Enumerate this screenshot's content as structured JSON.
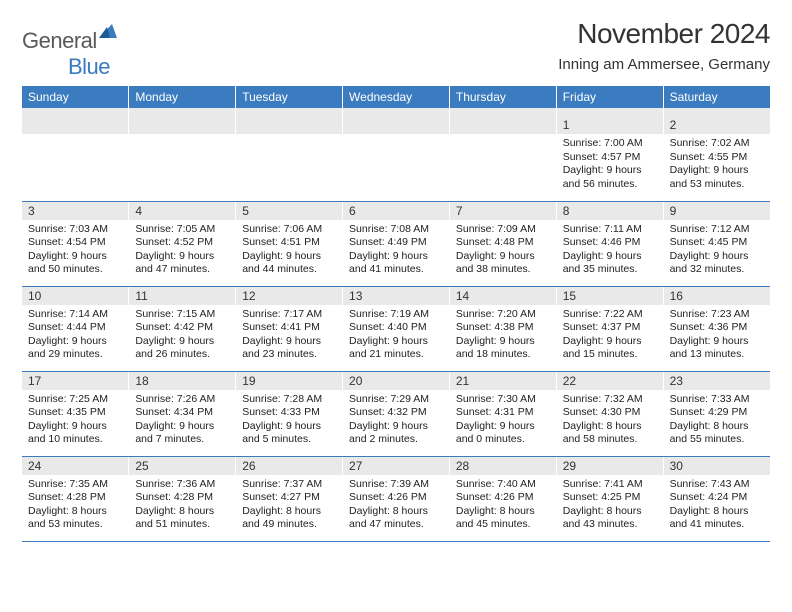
{
  "branding": {
    "logo_part1": "General",
    "logo_part2": "Blue",
    "logo_color_primary": "#3b7bbf",
    "logo_color_text": "#5a5a5a"
  },
  "header": {
    "month_title": "November 2024",
    "location": "Inning am Ammersee, Germany"
  },
  "style": {
    "header_bg": "#3b7bbf",
    "header_text": "#ffffff",
    "daynum_bg": "#e9e9e9",
    "cell_border": "#3b7bbf",
    "body_text": "#222222",
    "title_fontsize": 28,
    "location_fontsize": 15,
    "th_fontsize": 12,
    "cell_fontsize": 10.5
  },
  "weekdays": [
    "Sunday",
    "Monday",
    "Tuesday",
    "Wednesday",
    "Thursday",
    "Friday",
    "Saturday"
  ],
  "weeks": [
    [
      {
        "day": "",
        "sunrise": "",
        "sunset": "",
        "daylight": ""
      },
      {
        "day": "",
        "sunrise": "",
        "sunset": "",
        "daylight": ""
      },
      {
        "day": "",
        "sunrise": "",
        "sunset": "",
        "daylight": ""
      },
      {
        "day": "",
        "sunrise": "",
        "sunset": "",
        "daylight": ""
      },
      {
        "day": "",
        "sunrise": "",
        "sunset": "",
        "daylight": ""
      },
      {
        "day": "1",
        "sunrise": "Sunrise: 7:00 AM",
        "sunset": "Sunset: 4:57 PM",
        "daylight": "Daylight: 9 hours and 56 minutes."
      },
      {
        "day": "2",
        "sunrise": "Sunrise: 7:02 AM",
        "sunset": "Sunset: 4:55 PM",
        "daylight": "Daylight: 9 hours and 53 minutes."
      }
    ],
    [
      {
        "day": "3",
        "sunrise": "Sunrise: 7:03 AM",
        "sunset": "Sunset: 4:54 PM",
        "daylight": "Daylight: 9 hours and 50 minutes."
      },
      {
        "day": "4",
        "sunrise": "Sunrise: 7:05 AM",
        "sunset": "Sunset: 4:52 PM",
        "daylight": "Daylight: 9 hours and 47 minutes."
      },
      {
        "day": "5",
        "sunrise": "Sunrise: 7:06 AM",
        "sunset": "Sunset: 4:51 PM",
        "daylight": "Daylight: 9 hours and 44 minutes."
      },
      {
        "day": "6",
        "sunrise": "Sunrise: 7:08 AM",
        "sunset": "Sunset: 4:49 PM",
        "daylight": "Daylight: 9 hours and 41 minutes."
      },
      {
        "day": "7",
        "sunrise": "Sunrise: 7:09 AM",
        "sunset": "Sunset: 4:48 PM",
        "daylight": "Daylight: 9 hours and 38 minutes."
      },
      {
        "day": "8",
        "sunrise": "Sunrise: 7:11 AM",
        "sunset": "Sunset: 4:46 PM",
        "daylight": "Daylight: 9 hours and 35 minutes."
      },
      {
        "day": "9",
        "sunrise": "Sunrise: 7:12 AM",
        "sunset": "Sunset: 4:45 PM",
        "daylight": "Daylight: 9 hours and 32 minutes."
      }
    ],
    [
      {
        "day": "10",
        "sunrise": "Sunrise: 7:14 AM",
        "sunset": "Sunset: 4:44 PM",
        "daylight": "Daylight: 9 hours and 29 minutes."
      },
      {
        "day": "11",
        "sunrise": "Sunrise: 7:15 AM",
        "sunset": "Sunset: 4:42 PM",
        "daylight": "Daylight: 9 hours and 26 minutes."
      },
      {
        "day": "12",
        "sunrise": "Sunrise: 7:17 AM",
        "sunset": "Sunset: 4:41 PM",
        "daylight": "Daylight: 9 hours and 23 minutes."
      },
      {
        "day": "13",
        "sunrise": "Sunrise: 7:19 AM",
        "sunset": "Sunset: 4:40 PM",
        "daylight": "Daylight: 9 hours and 21 minutes."
      },
      {
        "day": "14",
        "sunrise": "Sunrise: 7:20 AM",
        "sunset": "Sunset: 4:38 PM",
        "daylight": "Daylight: 9 hours and 18 minutes."
      },
      {
        "day": "15",
        "sunrise": "Sunrise: 7:22 AM",
        "sunset": "Sunset: 4:37 PM",
        "daylight": "Daylight: 9 hours and 15 minutes."
      },
      {
        "day": "16",
        "sunrise": "Sunrise: 7:23 AM",
        "sunset": "Sunset: 4:36 PM",
        "daylight": "Daylight: 9 hours and 13 minutes."
      }
    ],
    [
      {
        "day": "17",
        "sunrise": "Sunrise: 7:25 AM",
        "sunset": "Sunset: 4:35 PM",
        "daylight": "Daylight: 9 hours and 10 minutes."
      },
      {
        "day": "18",
        "sunrise": "Sunrise: 7:26 AM",
        "sunset": "Sunset: 4:34 PM",
        "daylight": "Daylight: 9 hours and 7 minutes."
      },
      {
        "day": "19",
        "sunrise": "Sunrise: 7:28 AM",
        "sunset": "Sunset: 4:33 PM",
        "daylight": "Daylight: 9 hours and 5 minutes."
      },
      {
        "day": "20",
        "sunrise": "Sunrise: 7:29 AM",
        "sunset": "Sunset: 4:32 PM",
        "daylight": "Daylight: 9 hours and 2 minutes."
      },
      {
        "day": "21",
        "sunrise": "Sunrise: 7:30 AM",
        "sunset": "Sunset: 4:31 PM",
        "daylight": "Daylight: 9 hours and 0 minutes."
      },
      {
        "day": "22",
        "sunrise": "Sunrise: 7:32 AM",
        "sunset": "Sunset: 4:30 PM",
        "daylight": "Daylight: 8 hours and 58 minutes."
      },
      {
        "day": "23",
        "sunrise": "Sunrise: 7:33 AM",
        "sunset": "Sunset: 4:29 PM",
        "daylight": "Daylight: 8 hours and 55 minutes."
      }
    ],
    [
      {
        "day": "24",
        "sunrise": "Sunrise: 7:35 AM",
        "sunset": "Sunset: 4:28 PM",
        "daylight": "Daylight: 8 hours and 53 minutes."
      },
      {
        "day": "25",
        "sunrise": "Sunrise: 7:36 AM",
        "sunset": "Sunset: 4:28 PM",
        "daylight": "Daylight: 8 hours and 51 minutes."
      },
      {
        "day": "26",
        "sunrise": "Sunrise: 7:37 AM",
        "sunset": "Sunset: 4:27 PM",
        "daylight": "Daylight: 8 hours and 49 minutes."
      },
      {
        "day": "27",
        "sunrise": "Sunrise: 7:39 AM",
        "sunset": "Sunset: 4:26 PM",
        "daylight": "Daylight: 8 hours and 47 minutes."
      },
      {
        "day": "28",
        "sunrise": "Sunrise: 7:40 AM",
        "sunset": "Sunset: 4:26 PM",
        "daylight": "Daylight: 8 hours and 45 minutes."
      },
      {
        "day": "29",
        "sunrise": "Sunrise: 7:41 AM",
        "sunset": "Sunset: 4:25 PM",
        "daylight": "Daylight: 8 hours and 43 minutes."
      },
      {
        "day": "30",
        "sunrise": "Sunrise: 7:43 AM",
        "sunset": "Sunset: 4:24 PM",
        "daylight": "Daylight: 8 hours and 41 minutes."
      }
    ]
  ]
}
